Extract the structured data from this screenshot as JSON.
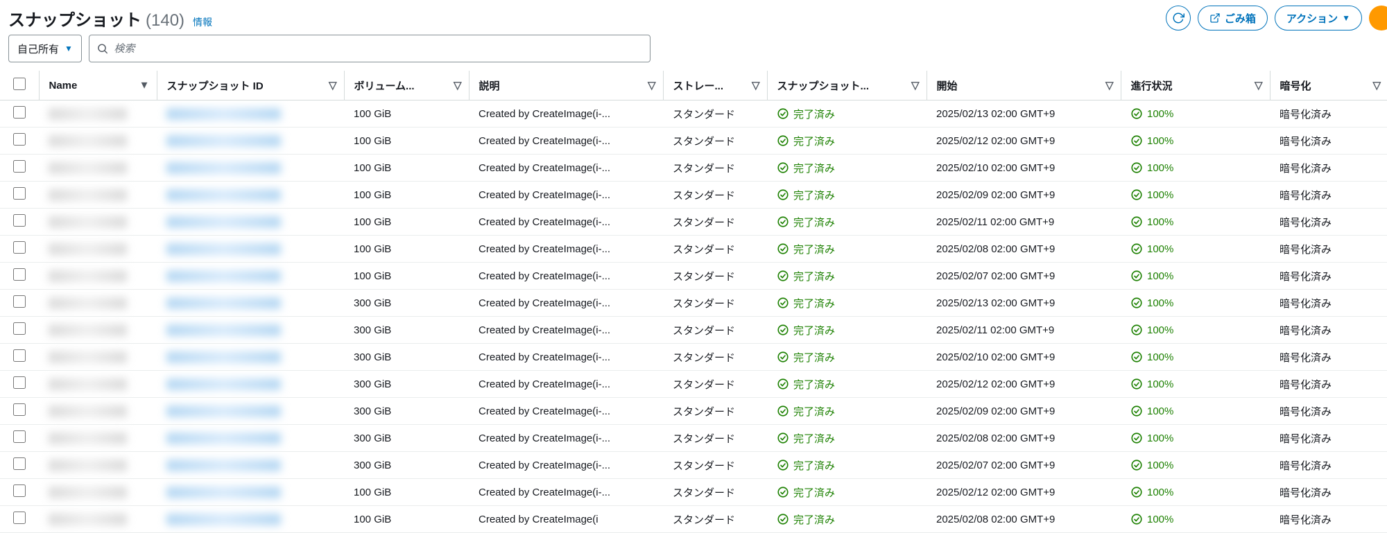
{
  "header": {
    "title": "スナップショット",
    "count": "(140)",
    "info": "情報",
    "recycle_bin": "ごみ箱",
    "actions": "アクション"
  },
  "controls": {
    "owner_filter": "自己所有",
    "search_placeholder": "検索"
  },
  "columns": {
    "name": "Name",
    "snapshot_id": "スナップショット ID",
    "volume": "ボリューム...",
    "description": "説明",
    "storage": "ストレー...",
    "snapshot_status": "スナップショット...",
    "start": "開始",
    "progress": "進行状況",
    "encryption": "暗号化"
  },
  "status_labels": {
    "completed": "完了済み",
    "progress_100": "100%"
  },
  "cell_defaults": {
    "storage": "スタンダード",
    "encryption": "暗号化済み",
    "description": "Created by CreateImage(i-..."
  },
  "rows": [
    {
      "volume": "100 GiB",
      "start": "2025/02/13 02:00 GMT+9"
    },
    {
      "volume": "100 GiB",
      "start": "2025/02/12 02:00 GMT+9"
    },
    {
      "volume": "100 GiB",
      "start": "2025/02/10 02:00 GMT+9"
    },
    {
      "volume": "100 GiB",
      "start": "2025/02/09 02:00 GMT+9"
    },
    {
      "volume": "100 GiB",
      "start": "2025/02/11 02:00 GMT+9"
    },
    {
      "volume": "100 GiB",
      "start": "2025/02/08 02:00 GMT+9"
    },
    {
      "volume": "100 GiB",
      "start": "2025/02/07 02:00 GMT+9"
    },
    {
      "volume": "300 GiB",
      "start": "2025/02/13 02:00 GMT+9"
    },
    {
      "volume": "300 GiB",
      "start": "2025/02/11 02:00 GMT+9"
    },
    {
      "volume": "300 GiB",
      "start": "2025/02/10 02:00 GMT+9"
    },
    {
      "volume": "300 GiB",
      "start": "2025/02/12 02:00 GMT+9"
    },
    {
      "volume": "300 GiB",
      "start": "2025/02/09 02:00 GMT+9"
    },
    {
      "volume": "300 GiB",
      "start": "2025/02/08 02:00 GMT+9"
    },
    {
      "volume": "300 GiB",
      "start": "2025/02/07 02:00 GMT+9"
    },
    {
      "volume": "100 GiB",
      "start": "2025/02/12 02:00 GMT+9"
    },
    {
      "volume": "100 GiB",
      "start": "2025/02/08 02:00 GMT+9",
      "partial": true,
      "description": "Created by CreateImage(i"
    }
  ],
  "colors": {
    "link": "#0073bb",
    "success": "#1d8102",
    "border": "#d5dbdb",
    "avatar": "#ff9900"
  }
}
